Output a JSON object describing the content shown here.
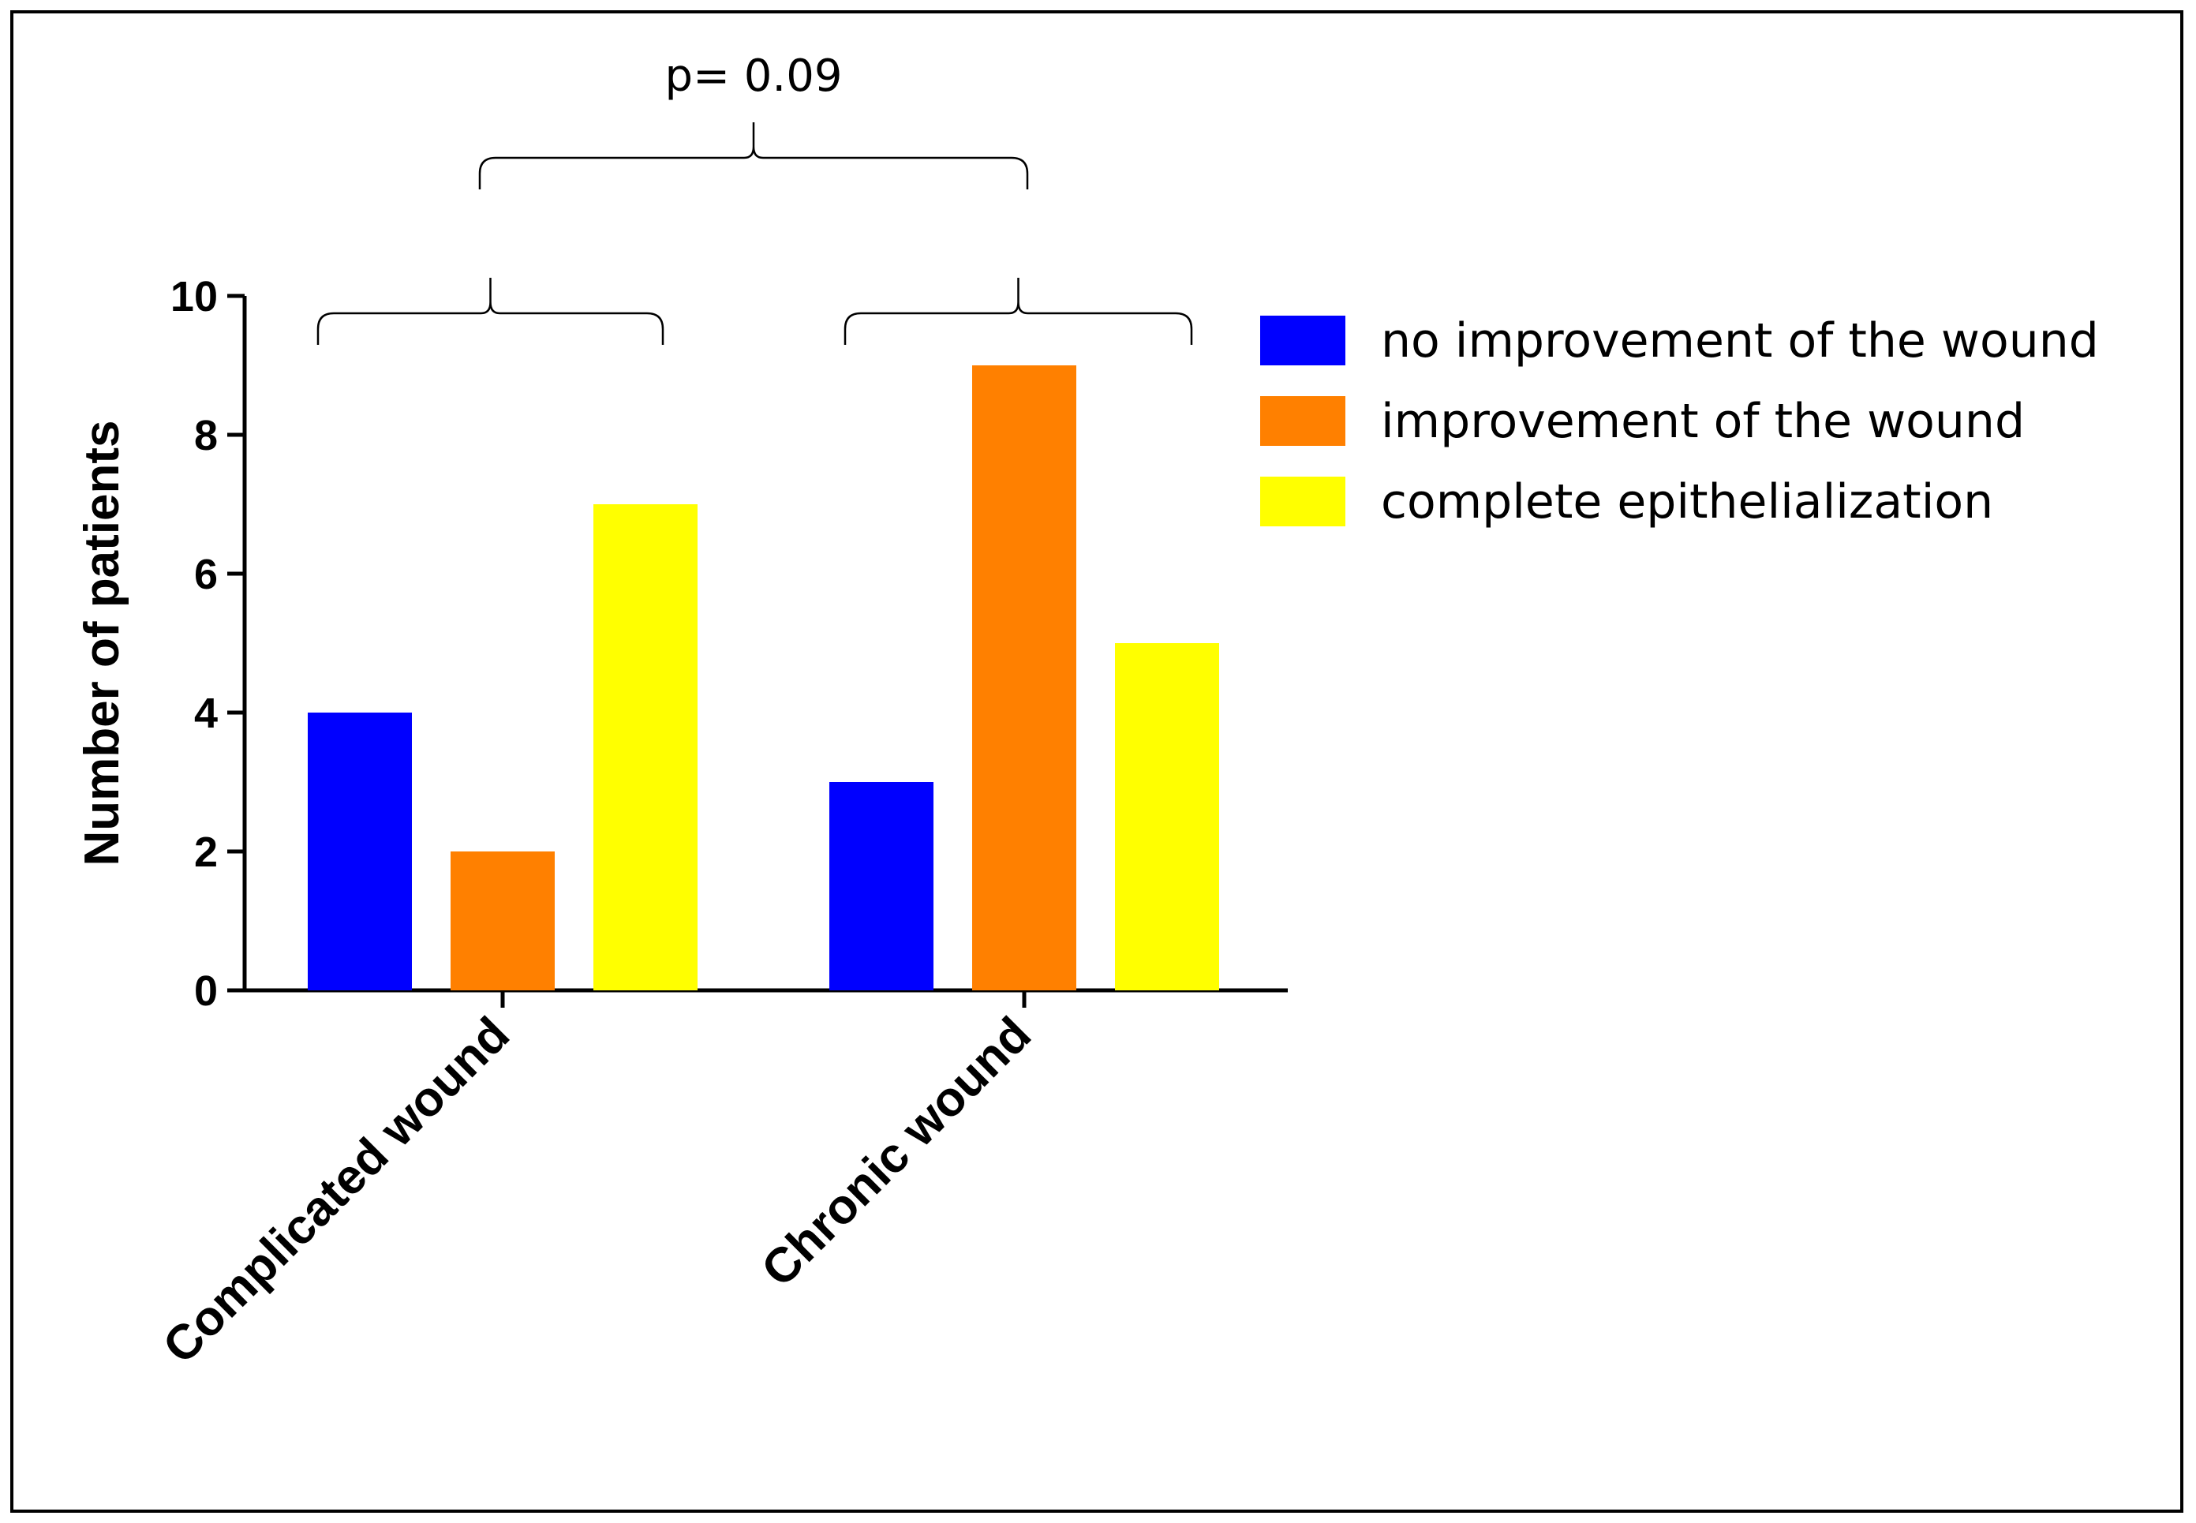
{
  "chart_data": {
    "type": "bar",
    "categories": [
      "Complicated wound",
      "Chronic wound"
    ],
    "series": [
      {
        "name": "no improvement of the wound",
        "color": "#0000FF",
        "values": [
          4,
          3
        ]
      },
      {
        "name": "improvement of the wound",
        "color": "#FF8000",
        "values": [
          2,
          9
        ]
      },
      {
        "name": "complete epithelialization",
        "color": "#FFFF00",
        "values": [
          7,
          5
        ]
      }
    ],
    "title": "",
    "xlabel": "",
    "ylabel": "Number of patients",
    "ylim": [
      0,
      10
    ],
    "yticks": [
      0,
      2,
      4,
      6,
      8,
      10
    ],
    "legend_position": "right",
    "annotations": [
      {
        "text": "p= 0.09",
        "spans": [
          "Complicated wound",
          "Chronic wound"
        ]
      }
    ]
  }
}
